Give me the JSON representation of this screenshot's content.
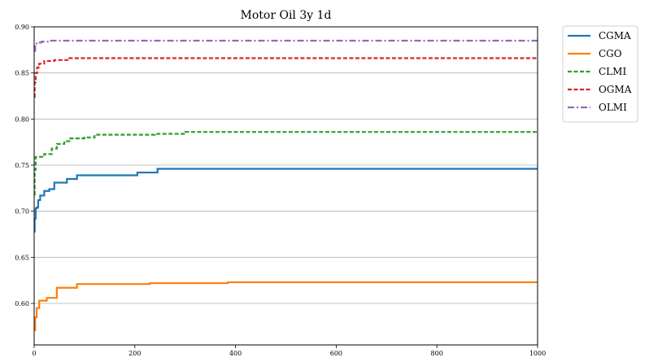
{
  "chart_data": {
    "type": "line",
    "title": "Motor Oil 3y 1d",
    "xlabel": "",
    "ylabel": "",
    "xlim": [
      0,
      1000
    ],
    "ylim": [
      0.555,
      0.9
    ],
    "xticks": [
      0,
      200,
      400,
      600,
      800,
      1000
    ],
    "yticks": [
      0.6,
      0.65,
      0.7,
      0.75,
      0.8,
      0.85,
      0.9
    ],
    "xtick_labels": [
      "0",
      "200",
      "400",
      "600",
      "800",
      "1000"
    ],
    "ytick_labels": [
      "0.60",
      "0.65",
      "0.70",
      "0.75",
      "0.80",
      "0.85",
      "0.90"
    ],
    "grid": "horizontal",
    "legend_position": "outside-top-right",
    "series": [
      {
        "name": "CGMA",
        "color": "#1f77b4",
        "dash": "solid",
        "x": [
          0,
          1,
          3,
          5,
          8,
          12,
          20,
          30,
          40,
          65,
          85,
          205,
          245,
          1000
        ],
        "y": [
          0.678,
          0.692,
          0.703,
          0.704,
          0.712,
          0.717,
          0.722,
          0.724,
          0.731,
          0.735,
          0.739,
          0.742,
          0.746,
          0.746
        ]
      },
      {
        "name": "CGO",
        "color": "#ff7f0e",
        "dash": "solid",
        "x": [
          0,
          2,
          5,
          10,
          25,
          45,
          85,
          230,
          385,
          1000
        ],
        "y": [
          0.571,
          0.585,
          0.595,
          0.603,
          0.606,
          0.617,
          0.621,
          0.622,
          0.623,
          0.623
        ]
      },
      {
        "name": "CLMI",
        "color": "#2ca02c",
        "dash": "dashed",
        "x": [
          0,
          1,
          3,
          20,
          35,
          45,
          60,
          70,
          100,
          120,
          240,
          300,
          1000
        ],
        "y": [
          0.718,
          0.745,
          0.759,
          0.762,
          0.768,
          0.773,
          0.776,
          0.779,
          0.78,
          0.783,
          0.784,
          0.786,
          0.786
        ]
      },
      {
        "name": "OGMA",
        "color": "#d62728",
        "dash": "dashed",
        "x": [
          0,
          1,
          3,
          6,
          10,
          20,
          40,
          70,
          1000
        ],
        "y": [
          0.824,
          0.84,
          0.85,
          0.856,
          0.86,
          0.863,
          0.864,
          0.866,
          0.866
        ]
      },
      {
        "name": "OLMI",
        "color": "#9467bd",
        "dash": "dashdot",
        "x": [
          0,
          2,
          5,
          15,
          30,
          1000
        ],
        "y": [
          0.874,
          0.88,
          0.883,
          0.884,
          0.885,
          0.885
        ]
      }
    ]
  }
}
